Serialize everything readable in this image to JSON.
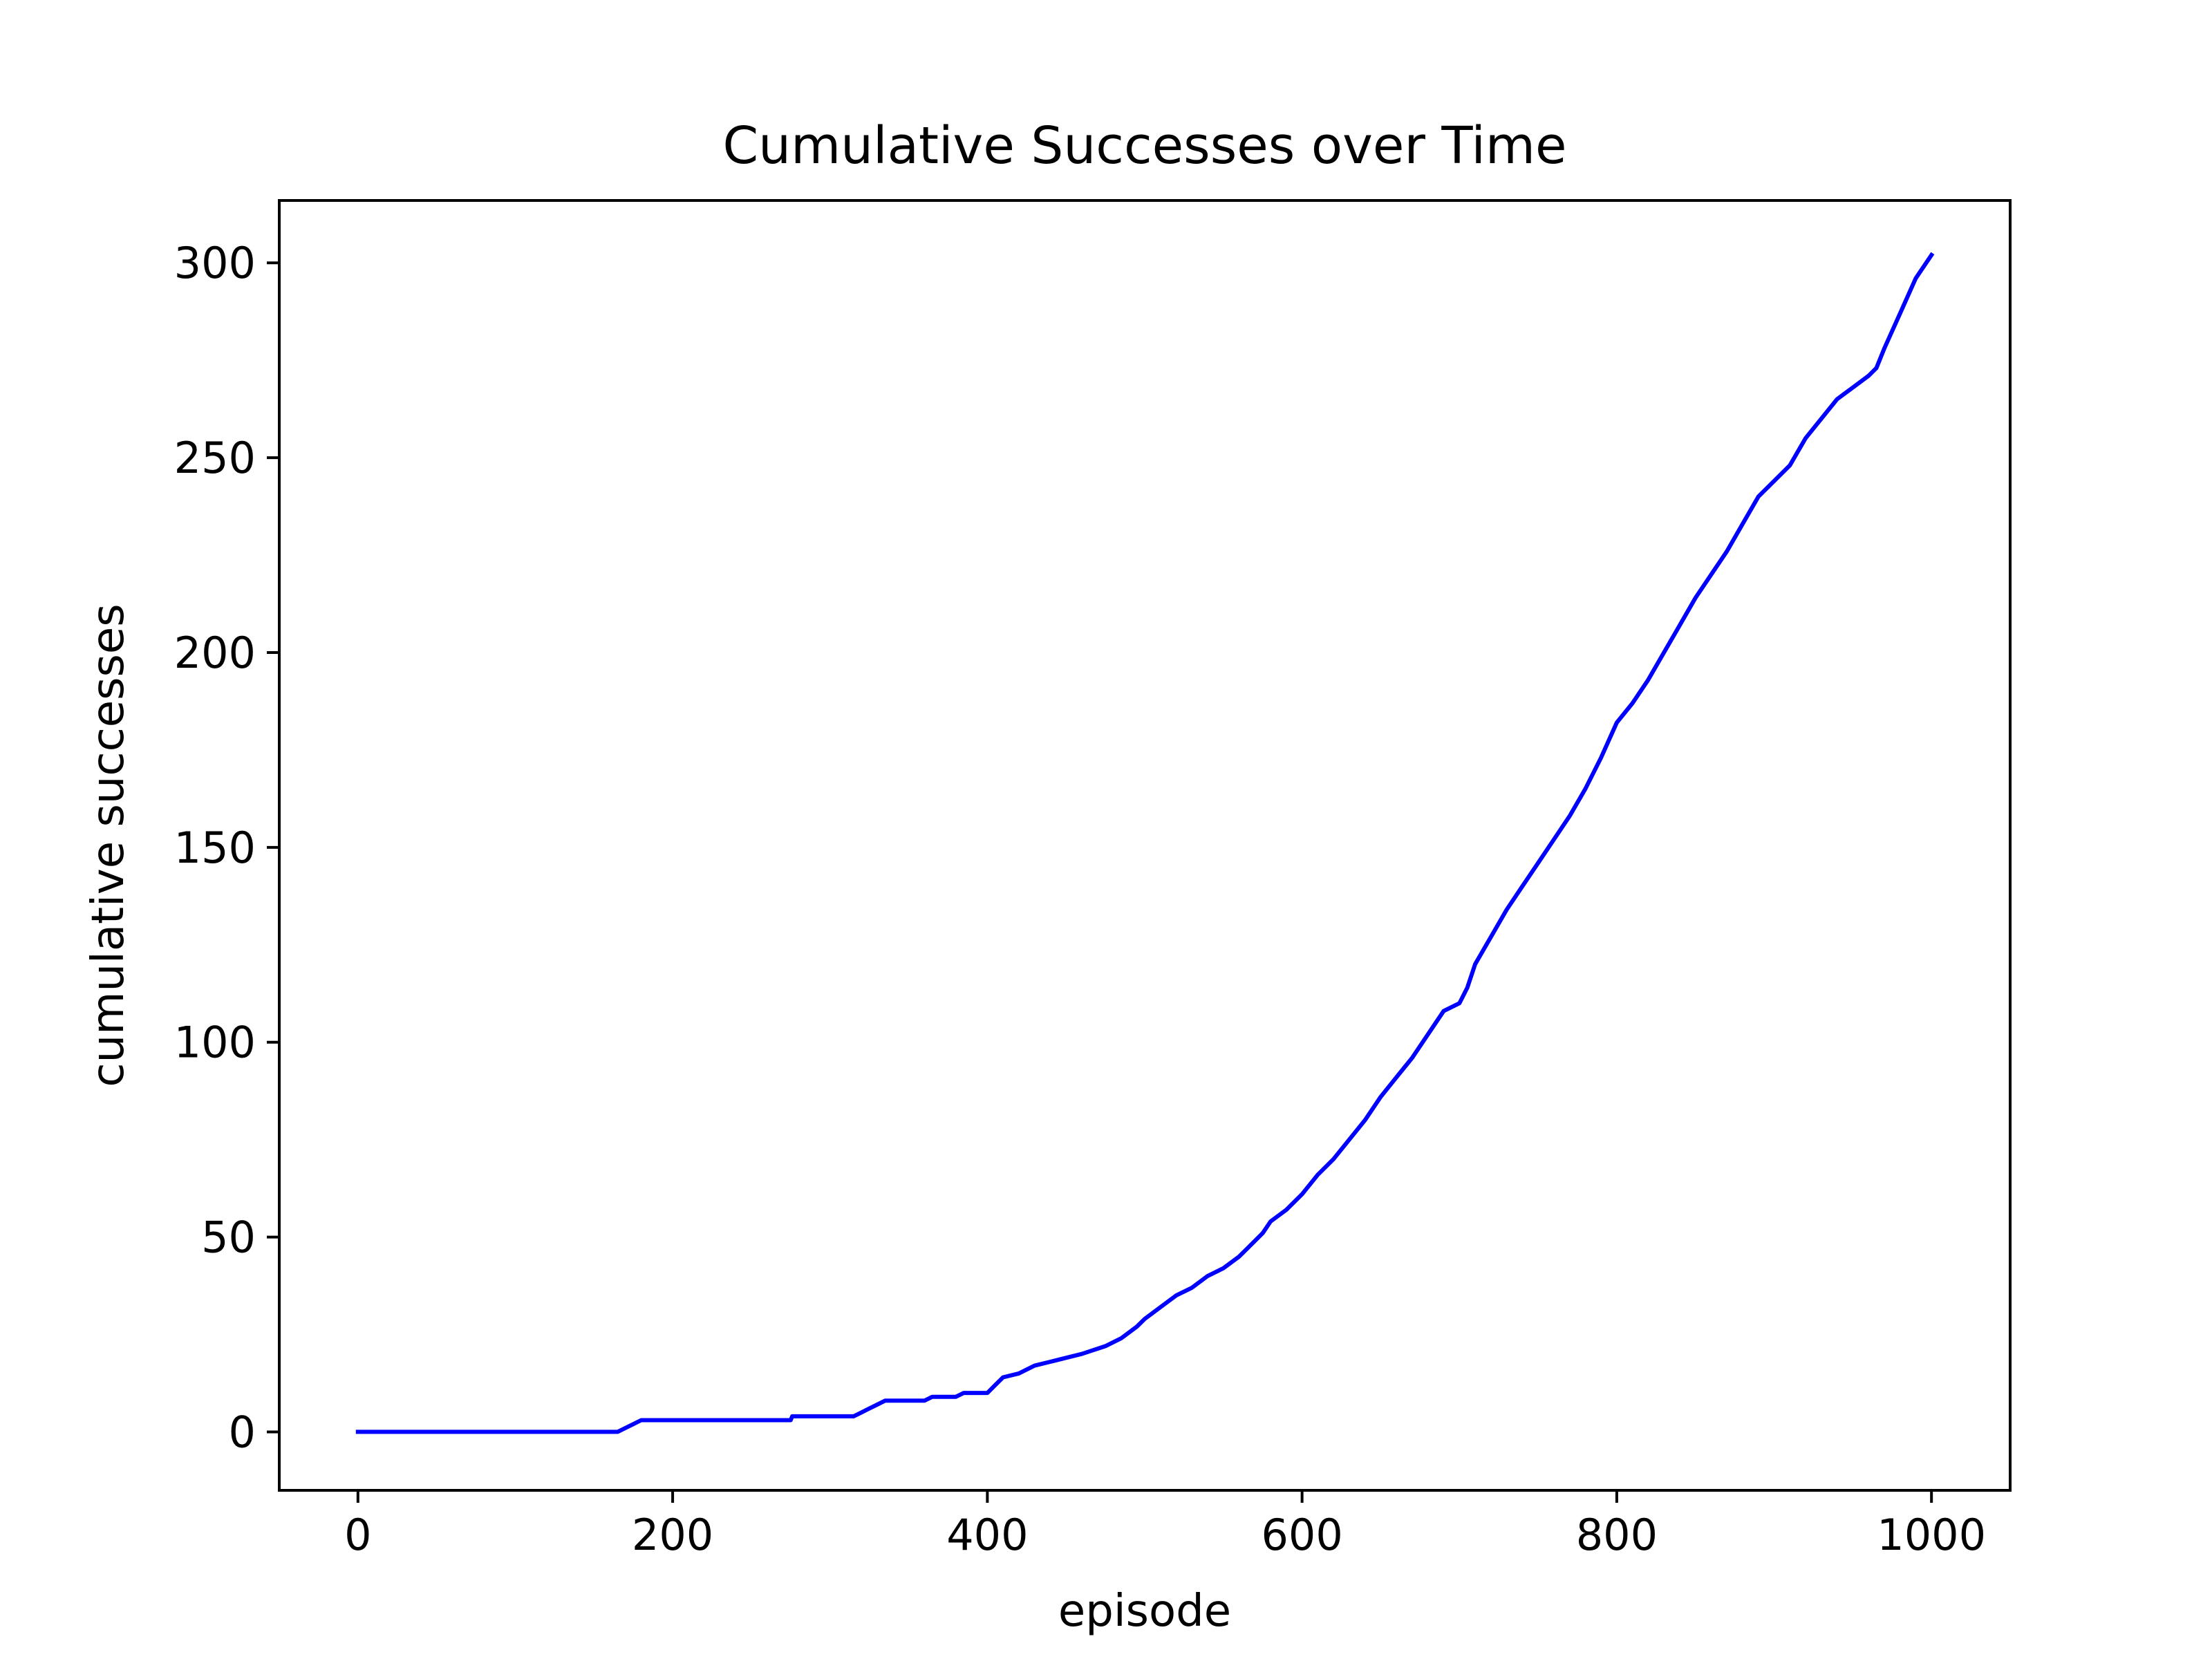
{
  "chart_data": {
    "type": "line",
    "title": "Cumulative Successes over Time",
    "xlabel": "episode",
    "ylabel": "cumulative successes",
    "xlim": [
      -50,
      1050
    ],
    "ylim": [
      -15,
      316
    ],
    "xticks": [
      0,
      200,
      400,
      600,
      800,
      1000
    ],
    "yticks": [
      0,
      50,
      100,
      150,
      200,
      250,
      300
    ],
    "grid": false,
    "legend": "none",
    "series": [
      {
        "color": "#0000ff",
        "x": [
          0,
          165,
          170,
          175,
          180,
          220,
          275,
          276,
          315,
          320,
          325,
          330,
          335,
          360,
          365,
          380,
          385,
          400,
          405,
          410,
          420,
          430,
          440,
          450,
          460,
          475,
          485,
          495,
          500,
          510,
          520,
          530,
          540,
          550,
          560,
          565,
          570,
          575,
          580,
          590,
          600,
          610,
          620,
          630,
          640,
          650,
          660,
          670,
          680,
          690,
          700,
          705,
          710,
          720,
          730,
          740,
          750,
          760,
          770,
          780,
          790,
          800,
          810,
          820,
          830,
          840,
          850,
          860,
          870,
          880,
          890,
          900,
          910,
          920,
          930,
          940,
          950,
          960,
          965,
          970,
          980,
          990,
          1000
        ],
        "values": [
          0,
          0,
          1,
          2,
          3,
          3,
          3,
          4,
          4,
          5,
          6,
          7,
          8,
          8,
          9,
          9,
          10,
          10,
          12,
          14,
          15,
          17,
          18,
          19,
          20,
          22,
          24,
          27,
          29,
          32,
          35,
          37,
          40,
          42,
          45,
          47,
          49,
          51,
          54,
          57,
          61,
          66,
          70,
          75,
          80,
          86,
          91,
          96,
          102,
          108,
          110,
          114,
          120,
          127,
          134,
          140,
          146,
          152,
          158,
          165,
          173,
          182,
          187,
          193,
          200,
          207,
          214,
          220,
          226,
          233,
          240,
          244,
          248,
          255,
          260,
          265,
          268,
          271,
          273,
          278,
          287,
          296,
          302
        ]
      }
    ]
  }
}
